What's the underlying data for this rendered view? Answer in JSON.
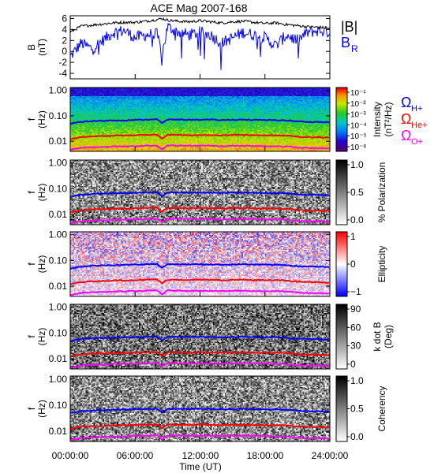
{
  "title": "ACE Mag 2007-168",
  "time_axis": {
    "label": "Time (UT)",
    "ticks": [
      "00:00:00",
      "06:00:00",
      "12:00:00",
      "18:00:00",
      "24:00:00"
    ],
    "range_hours": [
      0,
      24
    ]
  },
  "chart_data": [
    {
      "type": "line",
      "ylabel": "B",
      "yunit": "(nT)",
      "ylim": [
        -5,
        6.5
      ],
      "y_ticks": [
        "6",
        "4",
        "2",
        "0",
        "-2",
        "-4"
      ],
      "series": [
        {
          "name": "|B|",
          "color": "#000000",
          "x": [
            0,
            1,
            2,
            3,
            4,
            5,
            6,
            7,
            8,
            8.5,
            9,
            10,
            11,
            12,
            13,
            14,
            15,
            16,
            17,
            18,
            19,
            20,
            21,
            22,
            23,
            24
          ],
          "values": [
            3.5,
            4.6,
            4.8,
            5.0,
            5.2,
            5.3,
            5.3,
            5.5,
            5.8,
            6.0,
            5.7,
            5.5,
            5.4,
            5.6,
            5.4,
            5.2,
            5.4,
            5.5,
            5.3,
            5.1,
            5.2,
            4.9,
            4.7,
            4.5,
            4.4,
            4.2
          ]
        },
        {
          "name": "B",
          "subscript": "R",
          "color": "#0000ff",
          "x": [
            0,
            1,
            2,
            3,
            4,
            5,
            6,
            7,
            8,
            8.5,
            9,
            10,
            11,
            12,
            13,
            14,
            15,
            16,
            17,
            18,
            19,
            20,
            21,
            22,
            23,
            24
          ],
          "values": [
            -1.0,
            1.5,
            0.5,
            2.0,
            3.5,
            3.8,
            2.5,
            3.0,
            3.2,
            -0.5,
            4.5,
            3.5,
            3.0,
            3.5,
            3.0,
            1.5,
            2.5,
            3.5,
            3.0,
            2.5,
            1.0,
            3.0,
            2.0,
            3.5,
            3.8,
            3.5
          ]
        }
      ]
    },
    {
      "type": "heatmap",
      "ylabel": "f",
      "yunit": "(Hz)",
      "yscale": "log",
      "ylim": [
        0.004,
        1.3
      ],
      "y_ticks": [
        "1.00",
        "0.10",
        "0.01"
      ],
      "colorbar": {
        "label": "Intensity",
        "unit": "(nT²/Hz)",
        "scale": "log",
        "ticks": [
          "10⁻¹",
          "10⁻²",
          "10⁻³",
          "10⁻⁴",
          "10⁻⁵",
          "10⁻⁶"
        ],
        "palette": "rainbow"
      },
      "legend": [
        {
          "label": "Ω",
          "sub": "H+",
          "color": "#0000ff"
        },
        {
          "label": "Ω",
          "sub": "He+",
          "color": "#ff0000"
        },
        {
          "label": "Ω",
          "sub": "O+",
          "color": "#ff00ff"
        }
      ]
    },
    {
      "type": "heatmap",
      "ylabel": "f",
      "yunit": "(Hz)",
      "yscale": "log",
      "ylim": [
        0.004,
        1.3
      ],
      "y_ticks": [
        "1.00",
        "0.10",
        "0.01"
      ],
      "colorbar": {
        "label": "% Polarization",
        "unit": "",
        "scale": "linear",
        "ticks": [
          "1.0",
          "0.5",
          "0.0"
        ],
        "palette": "gray"
      }
    },
    {
      "type": "heatmap",
      "ylabel": "f",
      "yunit": "(Hz)",
      "yscale": "log",
      "ylim": [
        0.004,
        1.3
      ],
      "y_ticks": [
        "1.00",
        "0.10",
        "0.01"
      ],
      "colorbar": {
        "label": "Ellipticity",
        "unit": "",
        "scale": "linear",
        "ticks": [
          "1",
          "0",
          "−1"
        ],
        "palette": "bwr"
      }
    },
    {
      "type": "heatmap",
      "ylabel": "f",
      "yunit": "(Hz)",
      "yscale": "log",
      "ylim": [
        0.004,
        1.3
      ],
      "y_ticks": [
        "1.00",
        "0.10",
        "0.01"
      ],
      "colorbar": {
        "label": "k dot B",
        "unit": "(Deg)",
        "scale": "linear",
        "ticks": [
          "90",
          "60",
          "30",
          "0"
        ],
        "palette": "gray"
      }
    },
    {
      "type": "heatmap",
      "ylabel": "f",
      "yunit": "(Hz)",
      "yscale": "log",
      "ylim": [
        0.004,
        1.3
      ],
      "y_ticks": [
        "1.00",
        "0.10",
        "0.01"
      ],
      "colorbar": {
        "label": "Coherency",
        "unit": "",
        "scale": "linear",
        "ticks": [
          "1.0",
          "0.5",
          "0.0"
        ],
        "palette": "gray"
      }
    }
  ],
  "gyrofrequency_lines": {
    "x": [
      0,
      1,
      2,
      3,
      4,
      5,
      6,
      7,
      8,
      8.5,
      9,
      10,
      11,
      12,
      13,
      14,
      15,
      16,
      17,
      18,
      19,
      20,
      21,
      22,
      23,
      24
    ],
    "H+": [
      0.048,
      0.058,
      0.062,
      0.064,
      0.066,
      0.067,
      0.069,
      0.071,
      0.074,
      0.05,
      0.072,
      0.071,
      0.07,
      0.071,
      0.07,
      0.068,
      0.07,
      0.071,
      0.069,
      0.068,
      0.068,
      0.066,
      0.06,
      0.058,
      0.057,
      0.055
    ],
    "He+": [
      0.012,
      0.0145,
      0.0155,
      0.016,
      0.0165,
      0.0168,
      0.0172,
      0.0178,
      0.0185,
      0.0125,
      0.018,
      0.0178,
      0.0175,
      0.0178,
      0.0175,
      0.017,
      0.0175,
      0.0178,
      0.0172,
      0.017,
      0.017,
      0.0165,
      0.015,
      0.0145,
      0.0142,
      0.0138
    ],
    "O+": [
      0.0045,
      0.0055,
      0.0058,
      0.006,
      0.0062,
      0.0063,
      0.0064,
      0.0066,
      0.0069,
      0.0048,
      0.0068,
      0.0067,
      0.0066,
      0.0067,
      0.0066,
      0.0064,
      0.0066,
      0.0067,
      0.0065,
      0.0064,
      0.0064,
      0.0062,
      0.0056,
      0.0054,
      0.0053,
      0.0052
    ]
  }
}
